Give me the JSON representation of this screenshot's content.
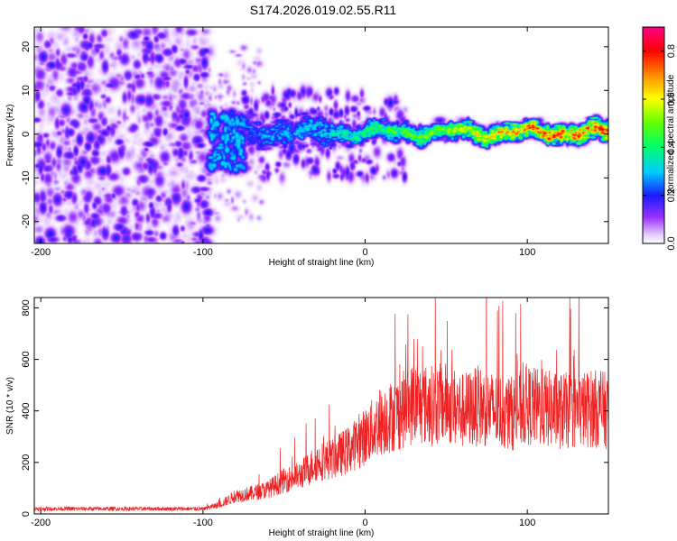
{
  "chart_data": [
    {
      "type": "heatmap",
      "title": "S174.2026.019.02.55.R11",
      "xlabel": "Height of straight line (km)",
      "ylabel": "Frequency (Hz)",
      "xlim": [
        -204,
        150
      ],
      "ylim": [
        -25,
        24.5
      ],
      "xticks": [
        -200,
        -100,
        0,
        100
      ],
      "yticks": [
        -20,
        -10,
        0,
        10,
        20
      ],
      "colorbar": {
        "label": "Normalized spectral amplitude",
        "range": [
          0,
          0.9
        ],
        "ticks": [
          0.0,
          0.2,
          0.4,
          0.6,
          0.8
        ],
        "tick_labels": [
          "0.0",
          "0.2",
          "0.4",
          "0.6",
          "0.8"
        ]
      },
      "regions": [
        {
          "name": "noise",
          "x": [
            -204,
            -96
          ],
          "y": [
            -25,
            24.5
          ],
          "amplitude": [
            0.03,
            0.2
          ]
        },
        {
          "name": "onset",
          "x": [
            -96,
            -75
          ],
          "y": [
            -8,
            5
          ],
          "amplitude": [
            0.1,
            0.35
          ]
        },
        {
          "name": "ridge",
          "x": [
            -75,
            150
          ],
          "y_center": 0.5,
          "y_spread": 2.5,
          "amplitude": [
            0.2,
            0.9
          ]
        }
      ],
      "ridge_amplitude": {
        "x": [
          -75,
          -20,
          0,
          50,
          100,
          150
        ],
        "peak": [
          0.3,
          0.4,
          0.5,
          0.6,
          0.85,
          0.9
        ]
      }
    },
    {
      "type": "line",
      "xlabel": "Height of straight line (km)",
      "ylabel": "SNR (10 * v/v)",
      "xlim": [
        -204,
        150
      ],
      "ylim": [
        0,
        840
      ],
      "xticks": [
        -200,
        -100,
        0,
        100
      ],
      "yticks": [
        0,
        200,
        400,
        600,
        800
      ],
      "color": "#ee2222",
      "series": [
        {
          "name": "SNR envelope",
          "x": [
            -204,
            -100,
            -90,
            -80,
            -70,
            -60,
            -50,
            -40,
            -30,
            -20,
            -10,
            0,
            10,
            20,
            30,
            40,
            50,
            60,
            70,
            80,
            90,
            100,
            110,
            120,
            130,
            140,
            150
          ],
          "y": [
            20,
            20,
            35,
            70,
            80,
            95,
            130,
            150,
            200,
            215,
            250,
            300,
            360,
            390,
            430,
            420,
            430,
            400,
            420,
            400,
            390,
            420,
            410,
            400,
            400,
            410,
            400
          ]
        }
      ]
    }
  ]
}
